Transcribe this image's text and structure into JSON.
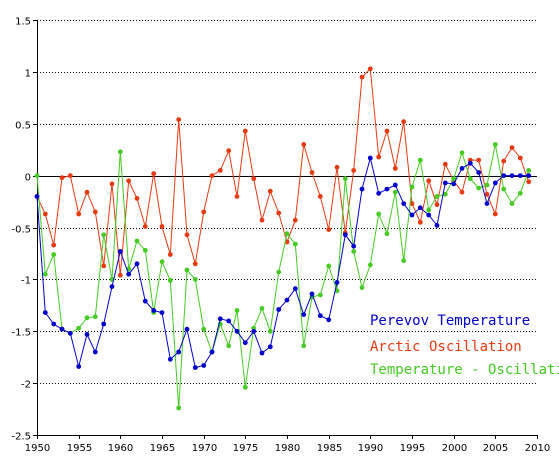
{
  "chart_data": {
    "type": "line",
    "title": "",
    "xlabel": "",
    "ylabel": "",
    "xlim": [
      1950,
      2010
    ],
    "ylim": [
      -2.5,
      1.5
    ],
    "x_ticks": [
      1950,
      1955,
      1960,
      1965,
      1970,
      1975,
      1980,
      1985,
      1990,
      1995,
      2000,
      2005,
      2010
    ],
    "y_ticks": [
      1.5,
      1,
      0.5,
      0,
      -0.5,
      -1,
      -1.5,
      -2,
      -2.5
    ],
    "grid": "horizontal dotted",
    "zero_line": true,
    "legend_position": "bottom-right",
    "x": [
      1950,
      1951,
      1952,
      1953,
      1954,
      1955,
      1956,
      1957,
      1958,
      1959,
      1960,
      1961,
      1962,
      1963,
      1964,
      1965,
      1966,
      1967,
      1968,
      1969,
      1970,
      1971,
      1972,
      1973,
      1974,
      1975,
      1976,
      1977,
      1978,
      1979,
      1980,
      1981,
      1982,
      1983,
      1984,
      1985,
      1986,
      1987,
      1988,
      1989,
      1990,
      1991,
      1992,
      1993,
      1994,
      1995,
      1996,
      1997,
      1998,
      1999,
      2000,
      2001,
      2002,
      2003,
      2004,
      2005,
      2006,
      2007,
      2008,
      2009
    ],
    "series": [
      {
        "name": "Perevov Temperature",
        "color": "#0000cc",
        "values": [
          -0.2,
          -1.32,
          -1.43,
          -1.48,
          -1.52,
          -1.84,
          -1.53,
          -1.7,
          -1.43,
          -1.07,
          -0.73,
          -0.95,
          -0.85,
          -1.21,
          -1.3,
          -1.32,
          -1.77,
          -1.7,
          -1.48,
          -1.85,
          -1.83,
          -1.7,
          -1.38,
          -1.4,
          -1.5,
          -1.61,
          -1.5,
          -1.71,
          -1.65,
          -1.29,
          -1.2,
          -1.09,
          -1.34,
          -1.14,
          -1.35,
          -1.39,
          -1.03,
          -0.57,
          -0.68,
          -0.13,
          0.17,
          -0.17,
          -0.13,
          -0.09,
          -0.27,
          -0.38,
          -0.31,
          -0.38,
          -0.48,
          -0.07,
          -0.08,
          0.07,
          0.12,
          0.03,
          -0.27,
          -0.07,
          0.0,
          0.0,
          0.0,
          0.0
        ]
      },
      {
        "name": "Arctic Oscillation",
        "color": "#e83a10",
        "values": [
          -0.2,
          -0.37,
          -0.67,
          -0.02,
          0.0,
          -0.37,
          -0.16,
          -0.35,
          -0.87,
          -0.08,
          -0.96,
          -0.05,
          -0.22,
          -0.49,
          0.02,
          -0.49,
          -0.76,
          0.54,
          -0.57,
          -0.85,
          -0.35,
          0.0,
          0.05,
          0.24,
          -0.2,
          0.43,
          -0.03,
          -0.43,
          -0.15,
          -0.36,
          -0.64,
          -0.43,
          0.3,
          0.03,
          -0.2,
          -0.52,
          0.08,
          -0.55,
          0.05,
          0.95,
          1.03,
          0.18,
          0.43,
          0.07,
          0.52,
          -0.27,
          -0.45,
          -0.05,
          -0.28,
          0.11,
          -0.05,
          -0.16,
          0.15,
          0.15,
          -0.18,
          -0.37,
          0.14,
          0.27,
          0.17,
          -0.06
        ]
      },
      {
        "name": "Temperature - Oscillation",
        "color": "#44cc22",
        "values": [
          0.0,
          -0.95,
          -0.76,
          -1.48,
          -1.52,
          -1.47,
          -1.37,
          -1.36,
          -0.57,
          -1.0,
          0.23,
          -0.9,
          -0.63,
          -0.72,
          -1.32,
          -0.83,
          -1.01,
          -2.24,
          -0.91,
          -1.0,
          -1.48,
          -1.7,
          -1.43,
          -1.64,
          -1.3,
          -2.04,
          -1.47,
          -1.28,
          -1.5,
          -0.93,
          -0.56,
          -0.66,
          -1.64,
          -1.17,
          -1.15,
          -0.87,
          -1.11,
          -0.03,
          -0.73,
          -1.08,
          -0.86,
          -0.37,
          -0.56,
          -0.16,
          -0.82,
          -0.11,
          0.15,
          -0.33,
          -0.2,
          -0.18,
          -0.03,
          0.22,
          -0.03,
          -0.12,
          -0.09,
          0.3,
          -0.13,
          -0.27,
          -0.17,
          0.05
        ]
      }
    ]
  }
}
